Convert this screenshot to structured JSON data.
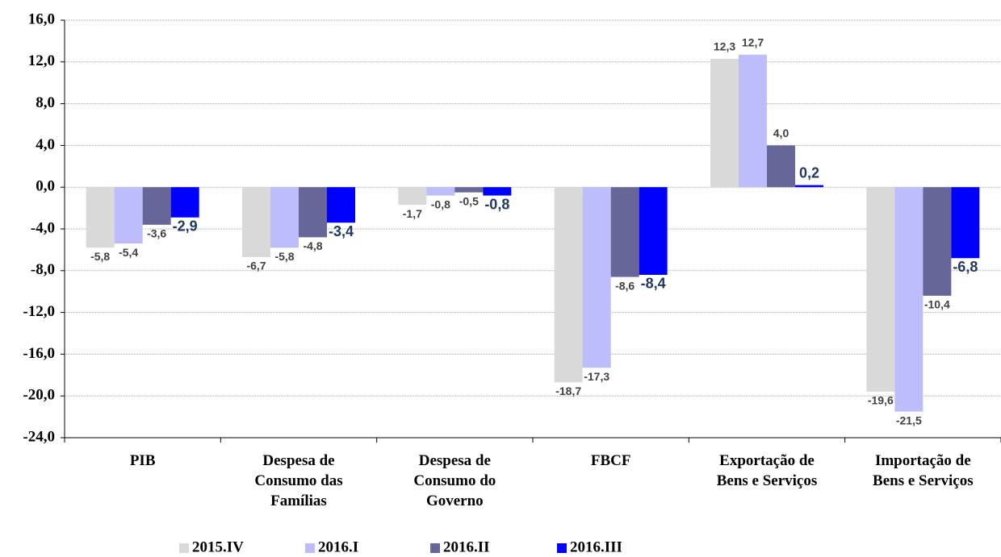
{
  "chart_data": {
    "type": "bar",
    "categories": [
      "PIB",
      "Despesa de\nConsumo das\nFamílias",
      "Despesa de\nConsumo do\nGoverno",
      "FBCF",
      "Exportação de\nBens e Serviços",
      "Importação de\nBens e Serviços"
    ],
    "series": [
      {
        "name": "2015.IV",
        "color": "#d9d9d9",
        "values": [
          -5.8,
          -6.7,
          -1.7,
          -18.7,
          12.3,
          -19.6
        ],
        "value_labels": [
          "-5,8",
          "-6,7",
          "-1,7",
          "-18,7",
          "12,3",
          "-19,6"
        ]
      },
      {
        "name": "2016.I",
        "color": "#bdbdfb",
        "values": [
          -5.4,
          -5.8,
          -0.8,
          -17.3,
          12.7,
          -21.5
        ],
        "value_labels": [
          "-5,4",
          "-5,8",
          "-0,8",
          "-17,3",
          "12,7",
          "-21,5"
        ]
      },
      {
        "name": "2016.II",
        "color": "#666699",
        "values": [
          -3.6,
          -4.8,
          -0.5,
          -8.6,
          4.0,
          -10.4
        ],
        "value_labels": [
          "-3,6",
          "-4,8",
          "-0,5",
          "-8,6",
          "4,0",
          "-10,4"
        ]
      },
      {
        "name": "2016.III",
        "color": "#0000ff",
        "values": [
          -2.9,
          -3.4,
          -0.8,
          -8.4,
          0.2,
          -6.8
        ],
        "value_labels": [
          "-2,9",
          "-3,4",
          "-0,8",
          "-8,4",
          "0,2",
          "-6,8"
        ]
      }
    ],
    "ylim": [
      -24,
      16
    ],
    "yticks": [
      {
        "value": -24,
        "label": "-24,0"
      },
      {
        "value": -20,
        "label": "-20,0"
      },
      {
        "value": -16,
        "label": "-16,0"
      },
      {
        "value": -12,
        "label": "-12,0"
      },
      {
        "value": -8,
        "label": "-8,0"
      },
      {
        "value": -4,
        "label": "-4,0"
      },
      {
        "value": 0,
        "label": "0,0"
      },
      {
        "value": 4,
        "label": "4,0"
      },
      {
        "value": 8,
        "label": "8,0"
      },
      {
        "value": 12,
        "label": "12,0"
      },
      {
        "value": 16,
        "label": "16,0"
      }
    ],
    "grid": true,
    "legend": "bottom"
  }
}
